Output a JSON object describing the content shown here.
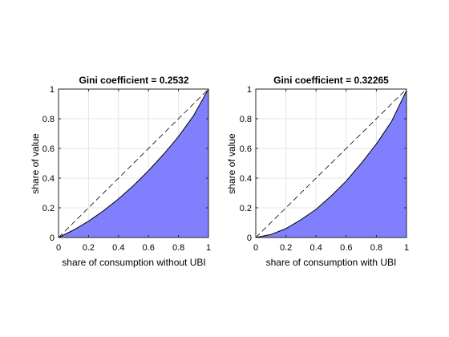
{
  "chart_data": [
    {
      "type": "area",
      "title": "Gini coefficient = 0.2532",
      "xlabel": "share of consumption without UBI",
      "ylabel": "share of value",
      "xlim": [
        0,
        1
      ],
      "ylim": [
        0,
        1
      ],
      "grid": true,
      "xticks": [
        "0",
        "0.2",
        "0.4",
        "0.6",
        "0.8",
        "1"
      ],
      "yticks": [
        "0",
        "0.2",
        "0.4",
        "0.6",
        "0.8",
        "1"
      ],
      "series": [
        {
          "style": "filled-curve",
          "color": "#8080ff",
          "x": [
            0,
            0.1,
            0.2,
            0.3,
            0.4,
            0.5,
            0.6,
            0.7,
            0.8,
            0.9,
            1.0
          ],
          "y": [
            0,
            0.05,
            0.11,
            0.18,
            0.26,
            0.35,
            0.45,
            0.56,
            0.68,
            0.82,
            1.0
          ]
        },
        {
          "style": "dashed-line",
          "x": [
            0,
            1
          ],
          "y": [
            0,
            1
          ]
        }
      ]
    },
    {
      "type": "area",
      "title": "Gini coefficient = 0.32265",
      "xlabel": "share of consumption with UBI",
      "ylabel": "share of value",
      "xlim": [
        0,
        1
      ],
      "ylim": [
        0,
        1
      ],
      "grid": true,
      "xticks": [
        "0",
        "0.2",
        "0.4",
        "0.6",
        "0.8",
        "1"
      ],
      "yticks": [
        "0",
        "0.2",
        "0.4",
        "0.6",
        "0.8",
        "1"
      ],
      "series": [
        {
          "style": "filled-curve",
          "color": "#8080ff",
          "x": [
            0,
            0.1,
            0.2,
            0.3,
            0.4,
            0.5,
            0.6,
            0.7,
            0.8,
            0.9,
            1.0
          ],
          "y": [
            0,
            0.02,
            0.06,
            0.12,
            0.19,
            0.28,
            0.38,
            0.5,
            0.63,
            0.78,
            0.99
          ]
        },
        {
          "style": "dashed-line",
          "x": [
            0,
            1
          ],
          "y": [
            0,
            1
          ]
        }
      ]
    }
  ]
}
